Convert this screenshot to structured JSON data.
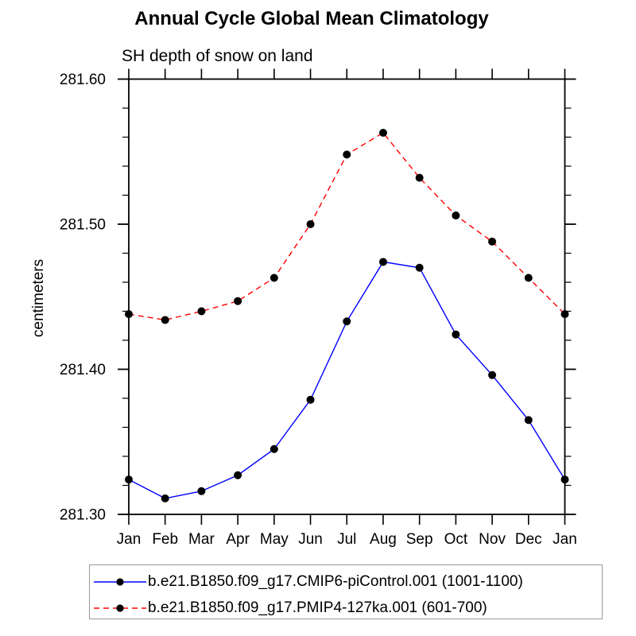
{
  "chart": {
    "title": "Annual Cycle Global Mean Climatology",
    "subtitle": "SH depth of snow on land",
    "ylabel": "centimeters"
  },
  "chart_data": {
    "type": "line",
    "title": "Annual Cycle Global Mean Climatology",
    "subtitle": "SH depth of snow on land",
    "xlabel": "",
    "ylabel": "centimeters",
    "categories": [
      "Jan",
      "Feb",
      "Mar",
      "Apr",
      "May",
      "Jun",
      "Jul",
      "Aug",
      "Sep",
      "Oct",
      "Nov",
      "Dec",
      "Jan"
    ],
    "ylim": [
      281.3,
      281.6
    ],
    "ytick_major_labels": [
      "281.30",
      "281.40",
      "281.50",
      "281.60"
    ],
    "ytick_major_values": [
      281.3,
      281.4,
      281.5,
      281.6
    ],
    "ytick_minor_step": 0.02,
    "grid": false,
    "legend_position": "bottom",
    "background_color": "#ffffff",
    "axis_color": "#000000",
    "marker_color": "#000000",
    "series": [
      {
        "name": "b.e21.B1850.f09_g17.CMIP6-piControl.001 (1001-1100)",
        "color": "#0000ff",
        "line_style": "solid",
        "marker": "filled-circle",
        "values": [
          281.324,
          281.311,
          281.316,
          281.327,
          281.345,
          281.379,
          281.433,
          281.474,
          281.47,
          281.424,
          281.396,
          281.365,
          281.324
        ]
      },
      {
        "name": "b.e21.B1850.f09_g17.PMIP4-127ka.001 (601-700)",
        "color": "#ff0000",
        "line_style": "dashed",
        "marker": "filled-circle",
        "values": [
          281.438,
          281.434,
          281.44,
          281.447,
          281.463,
          281.5,
          281.548,
          281.563,
          281.532,
          281.506,
          281.488,
          281.463,
          281.438
        ]
      }
    ]
  }
}
